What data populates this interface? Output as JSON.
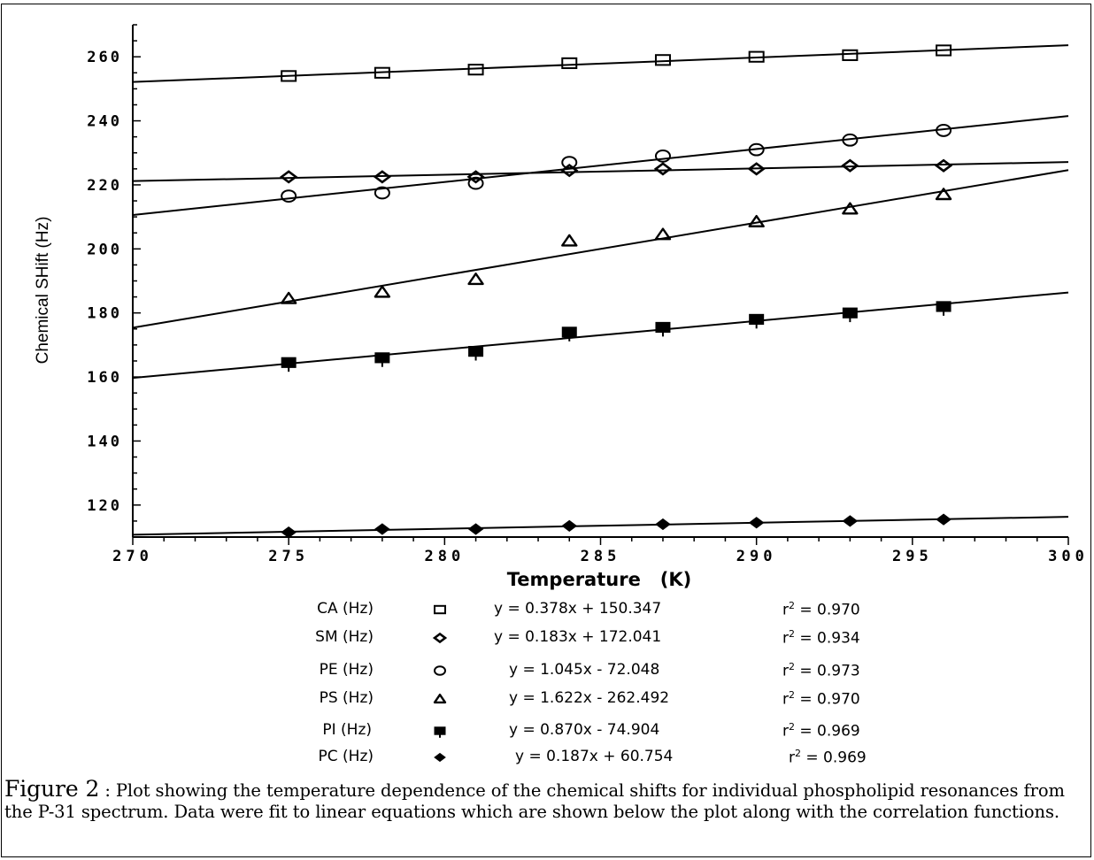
{
  "chart_data": {
    "type": "scatter",
    "title": "",
    "xlabel": "Temperature   (K)",
    "ylabel": "Chemical SHift (Hz)",
    "xlim": [
      270,
      300
    ],
    "ylim": [
      110,
      270
    ],
    "x_ticks": [
      270,
      275,
      280,
      285,
      290,
      295,
      300
    ],
    "y_ticks": [
      120,
      140,
      160,
      180,
      200,
      220,
      240,
      260
    ],
    "x_tick_labels": [
      "270",
      "275",
      "280",
      "285",
      "290",
      "295",
      "300"
    ],
    "y_tick_labels": [
      "120",
      "140",
      "160",
      "180",
      "200",
      "220",
      "240",
      "260"
    ],
    "grid": false,
    "legend_position": "below",
    "x": [
      275,
      278,
      281,
      284,
      287,
      290,
      293,
      296
    ],
    "series": [
      {
        "name": "CA (Hz)",
        "marker": "square-open",
        "values": [
          254,
          255,
          256,
          258,
          259,
          260,
          260.5,
          262
        ],
        "fit": {
          "slope": 0.378,
          "intercept": 150.347
        },
        "equation": "y = 0.378x + 150.347",
        "r2_label": "r",
        "r2_value": " = 0.970"
      },
      {
        "name": "SM (Hz)",
        "marker": "diamond",
        "values": [
          222.5,
          222.5,
          222.5,
          224.5,
          225,
          225,
          226,
          226
        ],
        "fit": {
          "slope": 0.183,
          "intercept": 172.041
        },
        "equation": "y = 0.183x + 172.041",
        "r2_label": "r",
        "r2_value": " = 0.934"
      },
      {
        "name": "PE (Hz)",
        "marker": "circle-open",
        "values": [
          216.5,
          217.5,
          220.5,
          227,
          229,
          231,
          234,
          237
        ],
        "fit": {
          "slope": 1.045,
          "intercept": -72.048
        },
        "equation": "y = 1.045x - 72.048",
        "r2_label": "r",
        "r2_value": " = 0.973"
      },
      {
        "name": "PS (Hz)",
        "marker": "triangle",
        "values": [
          184.5,
          186.5,
          190.5,
          202.5,
          204.5,
          208.5,
          212.5,
          217
        ],
        "fit": {
          "slope": 1.622,
          "intercept": -262.492
        },
        "equation": "y = 1.622x - 262.492",
        "r2_label": "r",
        "r2_value": " = 0.970"
      },
      {
        "name": "PI (Hz)",
        "marker": "square-plus",
        "values": [
          164.5,
          166,
          168,
          174,
          175.5,
          178,
          180,
          182
        ],
        "fit": {
          "slope": 0.87,
          "intercept": -74.904
        },
        "equation": "y = 0.870x - 74.904",
        "r2_label": "r",
        "r2_value": " = 0.969"
      },
      {
        "name": "PC (Hz)",
        "marker": "diamond-filled",
        "values": [
          111.5,
          112.5,
          112.5,
          113.5,
          114,
          114.5,
          115,
          115.5
        ],
        "fit": {
          "slope": 0.187,
          "intercept": 60.754
        },
        "equation": "y = 0.187x + 60.754",
        "r2_label": "r",
        "r2_value": " = 0.969"
      }
    ]
  },
  "caption": {
    "label": "Figure 2",
    "text": " :  Plot showing the temperature dependence of the chemical shifts for individual phospholipid resonances from the P-31 spectrum.  Data were fit to linear equations which are shown below the plot along with the correlation functions."
  }
}
